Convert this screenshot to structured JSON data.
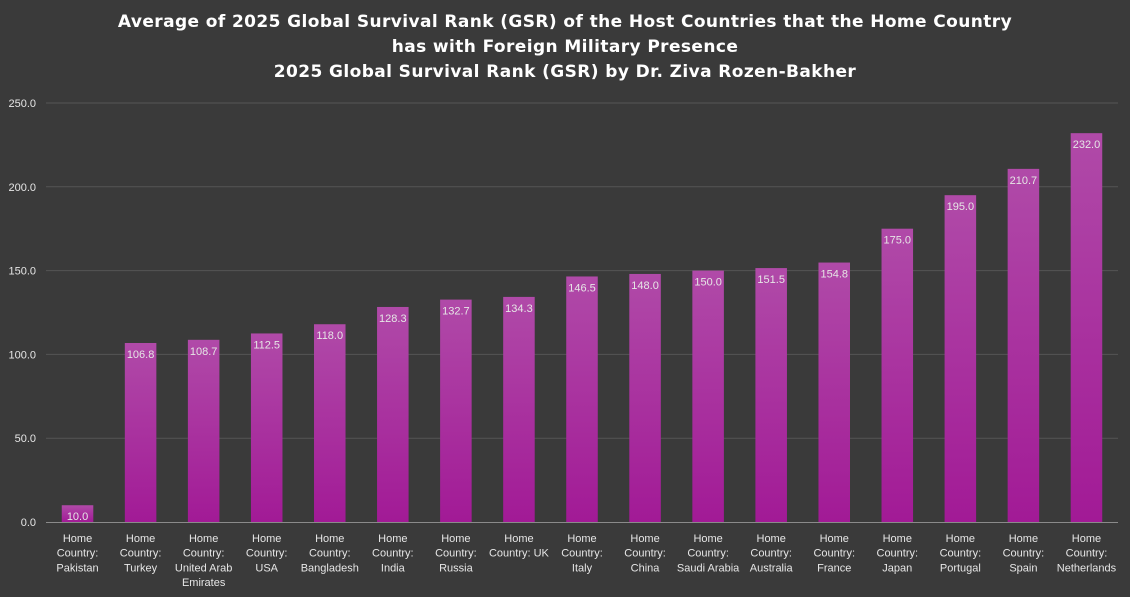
{
  "chart_data": {
    "type": "bar",
    "title_lines": [
      "Average of 2025 Global Survival Rank (GSR) of the Host Countries that the Home Country",
      "has with Foreign Military Presence",
      "2025 Global Survival Rank (GSR) by Dr. Ziva Rozen-Bakher"
    ],
    "xlabel": "",
    "ylabel": "",
    "ylim": [
      0,
      250
    ],
    "yticks": [
      "0.0",
      "50.0",
      "100.0",
      "150.0",
      "200.0",
      "250.0"
    ],
    "grid": true,
    "legend": "none",
    "categories": [
      [
        "Home",
        "Country:",
        "Pakistan"
      ],
      [
        "Home",
        "Country:",
        "Turkey"
      ],
      [
        "Home",
        "Country:",
        "United Arab",
        "Emirates"
      ],
      [
        "Home",
        "Country:",
        "USA"
      ],
      [
        "Home",
        "Country:",
        "Bangladesh"
      ],
      [
        "Home",
        "Country:",
        "India"
      ],
      [
        "Home",
        "Country:",
        "Russia"
      ],
      [
        "Home",
        "Country: UK"
      ],
      [
        "Home",
        "Country:",
        "Italy"
      ],
      [
        "Home",
        "Country:",
        "China"
      ],
      [
        "Home",
        "Country:",
        "Saudi Arabia"
      ],
      [
        "Home",
        "Country:",
        "Australia"
      ],
      [
        "Home",
        "Country:",
        "France"
      ],
      [
        "Home",
        "Country:",
        "Japan"
      ],
      [
        "Home",
        "Country:",
        "Portugal"
      ],
      [
        "Home",
        "Country:",
        "Spain"
      ],
      [
        "Home",
        "Country:",
        "Netherlands"
      ]
    ],
    "values": [
      10.0,
      106.8,
      108.7,
      112.5,
      118.0,
      128.3,
      132.7,
      134.3,
      146.5,
      148.0,
      150.0,
      151.5,
      154.8,
      175.0,
      195.0,
      210.7,
      232.0
    ],
    "data_labels": [
      "10.0",
      "106.8",
      "108.7",
      "112.5",
      "118.0",
      "128.3",
      "132.7",
      "134.3",
      "146.5",
      "148.0",
      "150.0",
      "151.5",
      "154.8",
      "175.0",
      "195.0",
      "210.7",
      "232.0"
    ],
    "colors": {
      "background": "#3a3a3a",
      "bar_top": "#b04aa8",
      "bar_bottom": "#a21a96",
      "grid": "#555555",
      "axis": "#8a8a8a",
      "text": "#ffffff",
      "tick_text": "#e6e6e6"
    }
  }
}
